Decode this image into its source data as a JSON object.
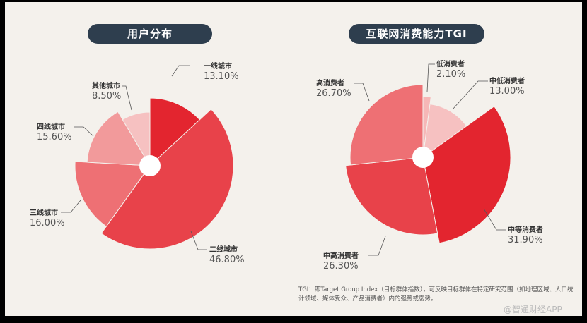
{
  "chart_data": [
    {
      "type": "pie",
      "title": "用户分布",
      "slices": [
        {
          "label": "一线城市",
          "value": 13.1,
          "display": "13.10%",
          "color": "#e3252f"
        },
        {
          "label": "二线城市",
          "value": 46.8,
          "display": "46.80%",
          "color": "#e8424a"
        },
        {
          "label": "三线城市",
          "value": 16.0,
          "display": "16.00%",
          "color": "#ee7074"
        },
        {
          "label": "四线城市",
          "value": 15.6,
          "display": "15.60%",
          "color": "#f29a9b"
        },
        {
          "label": "其他城市",
          "value": 8.5,
          "display": "8.50%",
          "color": "#f6c1c1"
        }
      ]
    },
    {
      "type": "pie",
      "title": "互联网消费能力TGI",
      "slices": [
        {
          "label": "低消费者",
          "value": 2.1,
          "display": "2.10%",
          "color": "#f6b7b7"
        },
        {
          "label": "中低消费者",
          "value": 13.0,
          "display": "13.00%",
          "color": "#f6c1c1"
        },
        {
          "label": "中等消费者",
          "value": 31.9,
          "display": "31.90%",
          "color": "#e3252f"
        },
        {
          "label": "中高消费者",
          "value": 26.3,
          "display": "26.30%",
          "color": "#e8424a"
        },
        {
          "label": "高消费者",
          "value": 26.7,
          "display": "26.70%",
          "color": "#ee7074"
        }
      ]
    }
  ],
  "footnote": "TGI：即Target Group Index（目标群体指数），可反映目标群体在特定研究范围（如地理区域、人口统计领域、媒体受众、产品消费者）内的强势或弱势。",
  "watermark": "@智通财经APP"
}
